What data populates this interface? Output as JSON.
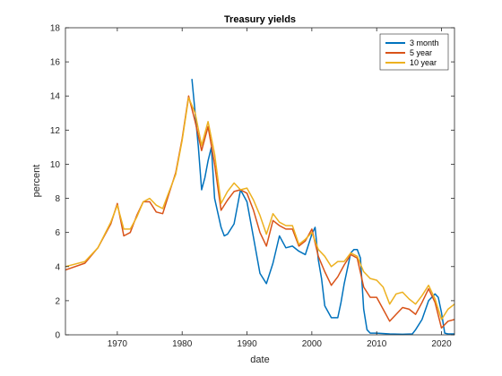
{
  "chart_data": {
    "type": "line",
    "title": "Treasury yields",
    "xlabel": "date",
    "ylabel": "percent",
    "xlim": [
      1962,
      2022
    ],
    "ylim": [
      0,
      18
    ],
    "xticks": [
      1970,
      1980,
      1990,
      2000,
      2010,
      2020
    ],
    "yticks": [
      0,
      2,
      4,
      6,
      8,
      10,
      12,
      14,
      16,
      18
    ],
    "grid": false,
    "legend_position": "top-right",
    "series": [
      {
        "name": "3 month",
        "color": "#0072BD",
        "x": [
          1981.5,
          1982,
          1982.5,
          1983,
          1983.5,
          1984,
          1984.5,
          1985,
          1986,
          1986.5,
          1987,
          1988,
          1989,
          1990,
          1991,
          1992,
          1993,
          1994,
          1995,
          1996,
          1997,
          1998,
          1999,
          2000,
          2000.5,
          2001,
          2001.5,
          2002,
          2003,
          2004,
          2004.5,
          2005,
          2006,
          2006.5,
          2007,
          2007.5,
          2008,
          2008.5,
          2009,
          2010,
          2012,
          2014,
          2015.5,
          2016,
          2017,
          2018,
          2019,
          2019.5,
          2020,
          2020.5,
          2021,
          2022
        ],
        "y": [
          15.0,
          13.0,
          11.0,
          8.5,
          9.2,
          10.2,
          11.0,
          8.0,
          6.3,
          5.8,
          5.9,
          6.5,
          8.5,
          7.8,
          5.7,
          3.6,
          3.0,
          4.2,
          5.8,
          5.1,
          5.2,
          4.9,
          4.7,
          5.9,
          6.3,
          4.4,
          3.3,
          1.7,
          1.0,
          1.0,
          1.9,
          3.0,
          4.8,
          5.0,
          5.0,
          4.5,
          1.5,
          0.3,
          0.1,
          0.1,
          0.05,
          0.03,
          0.05,
          0.3,
          0.9,
          2.0,
          2.4,
          2.2,
          1.3,
          0.1,
          0.05,
          0.05
        ]
      },
      {
        "name": "5 year",
        "color": "#D95319",
        "x": [
          1962,
          1965,
          1967,
          1969,
          1970,
          1971,
          1972,
          1973,
          1974,
          1975,
          1976,
          1977,
          1978,
          1979,
          1980,
          1981,
          1982,
          1983,
          1984,
          1985,
          1986,
          1987,
          1988,
          1989,
          1990,
          1991,
          1992,
          1993,
          1994,
          1995,
          1996,
          1997,
          1998,
          1999,
          2000,
          2001,
          2002,
          2003,
          2004,
          2005,
          2006,
          2007,
          2008,
          2009,
          2010,
          2011,
          2012,
          2013,
          2014,
          2015,
          2016,
          2017,
          2018,
          2019,
          2020,
          2021,
          2022
        ],
        "y": [
          3.8,
          4.2,
          5.1,
          6.5,
          7.7,
          5.8,
          6.0,
          7.0,
          7.8,
          7.8,
          7.2,
          7.1,
          8.3,
          9.5,
          11.5,
          14.0,
          12.5,
          10.8,
          12.2,
          10.0,
          7.3,
          7.9,
          8.4,
          8.5,
          8.3,
          7.3,
          6.0,
          5.2,
          6.7,
          6.4,
          6.2,
          6.2,
          5.2,
          5.5,
          6.2,
          4.6,
          3.7,
          2.9,
          3.4,
          4.1,
          4.7,
          4.5,
          2.8,
          2.2,
          2.2,
          1.5,
          0.8,
          1.2,
          1.6,
          1.5,
          1.2,
          1.9,
          2.7,
          1.9,
          0.4,
          0.8,
          0.9
        ]
      },
      {
        "name": "10 year",
        "color": "#EDB120",
        "x": [
          1962,
          1965,
          1967,
          1969,
          1970,
          1971,
          1972,
          1973,
          1974,
          1975,
          1976,
          1977,
          1978,
          1979,
          1980,
          1981,
          1982,
          1983,
          1984,
          1985,
          1986,
          1987,
          1988,
          1989,
          1990,
          1991,
          1992,
          1993,
          1994,
          1995,
          1996,
          1997,
          1998,
          1999,
          2000,
          2001,
          2002,
          2003,
          2004,
          2005,
          2006,
          2007,
          2008,
          2009,
          2010,
          2011,
          2012,
          2013,
          2014,
          2015,
          2016,
          2017,
          2018,
          2019,
          2020,
          2021,
          2022
        ],
        "y": [
          4.0,
          4.3,
          5.1,
          6.6,
          7.6,
          6.2,
          6.2,
          6.9,
          7.8,
          8.0,
          7.6,
          7.4,
          8.4,
          9.4,
          11.4,
          13.9,
          13.0,
          11.1,
          12.5,
          10.6,
          7.7,
          8.4,
          8.9,
          8.5,
          8.6,
          7.9,
          7.0,
          5.9,
          7.1,
          6.6,
          6.4,
          6.4,
          5.3,
          5.6,
          6.0,
          5.0,
          4.6,
          4.0,
          4.3,
          4.3,
          4.8,
          4.6,
          3.7,
          3.3,
          3.2,
          2.8,
          1.8,
          2.4,
          2.5,
          2.1,
          1.8,
          2.3,
          2.9,
          2.1,
          0.9,
          1.5,
          1.8
        ]
      }
    ]
  }
}
